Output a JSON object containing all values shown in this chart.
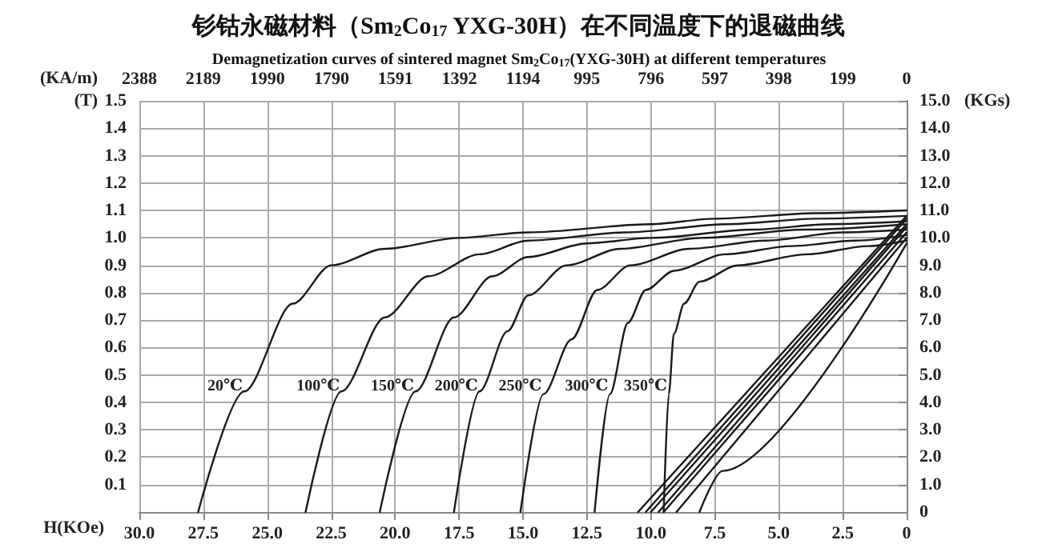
{
  "chart_data": {
    "type": "line",
    "title": "钐钴永磁材料（Sm$_{2}$Co$_{17}$ YXG-30H）在不同温度下的退磁曲线",
    "subtitle": "Demagnetization curves of sintered magnet Sm$_{2}$Co$_{17}$(YXG-30H) at different temperatures",
    "xlabel": "H(KOe)",
    "ylabel": "(T)",
    "x2label": "(KA/m)",
    "y2label": "(KGs)",
    "xlim": [
      30,
      0
    ],
    "xticks": [
      {
        "value": 30,
        "label": "30.0"
      },
      {
        "value": 27.5,
        "label": "27.5"
      },
      {
        "value": 25,
        "label": "25.0"
      },
      {
        "value": 22.5,
        "label": "22.5"
      },
      {
        "value": 20,
        "label": "20.0"
      },
      {
        "value": 17.5,
        "label": "17.5"
      },
      {
        "value": 15,
        "label": "15.0"
      },
      {
        "value": 12.5,
        "label": "12.5"
      },
      {
        "value": 10,
        "label": "10.0"
      },
      {
        "value": 7.5,
        "label": "7.5"
      },
      {
        "value": 5,
        "label": "5.0"
      },
      {
        "value": 2.5,
        "label": "2.5"
      },
      0
    ],
    "x2lim": [
      2388,
      0
    ],
    "x2ticks": [
      2388,
      2189,
      1990,
      1790,
      1591,
      1392,
      1194,
      995,
      796,
      597,
      398,
      199,
      0
    ],
    "ylim": [
      0,
      1.5
    ],
    "yticks": [
      0.1,
      0.2,
      0.3,
      0.4,
      0.5,
      0.6,
      0.7,
      0.8,
      0.9,
      {
        "value": 1,
        "label": "1.0"
      },
      1.1,
      1.2,
      1.3,
      1.4,
      1.5
    ],
    "y2lim": [
      0,
      15
    ],
    "y2ticks": [
      0,
      {
        "value": 1,
        "label": "1.0"
      },
      {
        "value": 2,
        "label": "2.0"
      },
      {
        "value": 3,
        "label": "3.0"
      },
      {
        "value": 4,
        "label": "4.0"
      },
      {
        "value": 5,
        "label": "5.0"
      },
      {
        "value": 6,
        "label": "6.0"
      },
      {
        "value": 7,
        "label": "7.0"
      },
      {
        "value": 8,
        "label": "8.0"
      },
      {
        "value": 9,
        "label": "9.0"
      },
      {
        "value": 10,
        "label": "10.0"
      },
      {
        "value": 11,
        "label": "11.0"
      },
      {
        "value": 12,
        "label": "12.0"
      },
      {
        "value": 13,
        "label": "13.0"
      },
      {
        "value": 14,
        "label": "14.0"
      },
      {
        "value": 15,
        "label": "15.0"
      }
    ],
    "grid": true,
    "marker": "none",
    "line_style": "solid",
    "series": [
      {
        "color": "#1a1a1a",
        "x": [
          27.7,
          25.9,
          24.0,
          22.5,
          20.4,
          17.5,
          14.8,
          10.0,
          7.5,
          3.5,
          0
        ],
        "values": [
          0,
          0.44,
          0.76,
          0.9,
          0.96,
          1.0,
          1.02,
          1.05,
          1.07,
          1.09,
          1.1
        ]
      },
      {
        "color": "#1a1a1a",
        "x": [
          23.5,
          22.1,
          20.4,
          18.7,
          16.7,
          14.8,
          11.0,
          7.0,
          3.5,
          0
        ],
        "values": [
          0,
          0.44,
          0.71,
          0.86,
          0.94,
          0.99,
          1.02,
          1.05,
          1.07,
          1.08
        ]
      },
      {
        "color": "#1a1a1a",
        "x": [
          20.6,
          19.2,
          17.7,
          16.2,
          14.8,
          12.5,
          10.0,
          6.0,
          3.0,
          0
        ],
        "values": [
          0,
          0.44,
          0.71,
          0.86,
          0.93,
          0.98,
          1.0,
          1.03,
          1.05,
          1.06
        ]
      },
      {
        "color": "#1a1a1a",
        "x": [
          17.7,
          16.7,
          15.6,
          14.8,
          13.3,
          11.2,
          8.0,
          4.0,
          0
        ],
        "values": [
          0,
          0.44,
          0.66,
          0.79,
          0.9,
          0.96,
          1.0,
          1.03,
          1.05
        ]
      },
      {
        "color": "#1a1a1a",
        "x": [
          15.1,
          14.2,
          13.1,
          12.1,
          10.8,
          8.5,
          5.5,
          2.5,
          0
        ],
        "values": [
          0,
          0.43,
          0.63,
          0.81,
          0.9,
          0.96,
          0.99,
          1.02,
          1.03
        ]
      },
      {
        "color": "#1a1a1a",
        "x": [
          12.2,
          11.6,
          10.9,
          10.2,
          9.1,
          7.1,
          4.5,
          2.0,
          0
        ],
        "values": [
          0,
          0.43,
          0.69,
          0.81,
          0.88,
          0.94,
          0.97,
          0.99,
          1.01
        ]
      },
      {
        "color": "#1a1a1a",
        "x": [
          9.5,
          9.3,
          9.1,
          8.7,
          8.1,
          6.6,
          3.9,
          1.5,
          0
        ],
        "values": [
          0,
          0.43,
          0.65,
          0.76,
          0.84,
          0.9,
          0.94,
          0.97,
          0.99
        ]
      },
      {
        "color": "#1a1a1a",
        "x": [
          10.5,
          0
        ],
        "values": [
          0,
          1.08
        ]
      },
      {
        "color": "#1a1a1a",
        "x": [
          10.2,
          0
        ],
        "values": [
          0,
          1.07
        ]
      },
      {
        "color": "#1a1a1a",
        "x": [
          10.0,
          0
        ],
        "values": [
          0,
          1.05
        ]
      },
      {
        "color": "#1a1a1a",
        "x": [
          9.7,
          0
        ],
        "values": [
          0,
          1.04
        ]
      },
      {
        "color": "#1a1a1a",
        "x": [
          9.5,
          0
        ],
        "values": [
          0,
          1.02
        ]
      },
      {
        "color": "#1a1a1a",
        "x": [
          9.0,
          0
        ],
        "values": [
          0,
          1.0
        ]
      },
      {
        "color": "#1a1a1a",
        "x": [
          8.1,
          7.2,
          0
        ],
        "values": [
          0,
          0.15,
          0.98
        ]
      }
    ],
    "annotations": [
      {
        "text": "20℃",
        "x": 25.9,
        "y": 0.43
      },
      {
        "text": "100℃",
        "x": 22.1,
        "y": 0.43
      },
      {
        "text": "150℃",
        "x": 19.2,
        "y": 0.43
      },
      {
        "text": "200℃",
        "x": 16.7,
        "y": 0.43
      },
      {
        "text": "250℃",
        "x": 14.2,
        "y": 0.43
      },
      {
        "text": "300℃",
        "x": 11.6,
        "y": 0.43
      },
      {
        "text": "350℃",
        "x": 9.3,
        "y": 0.43
      }
    ]
  }
}
